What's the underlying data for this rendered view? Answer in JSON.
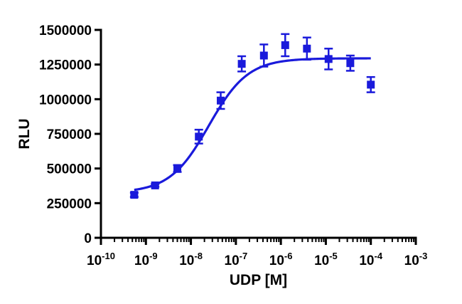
{
  "chart_data": {
    "type": "scatter",
    "xlabel": "UDP [M]",
    "ylabel": "RLU",
    "x_scale": "log",
    "xlim": [
      1e-10,
      0.001
    ],
    "ylim": [
      0,
      1500000
    ],
    "x_ticks": [
      {
        "value": 1e-10,
        "base": "10",
        "exp": "-10"
      },
      {
        "value": 1e-09,
        "base": "10",
        "exp": "-9"
      },
      {
        "value": 1e-08,
        "base": "10",
        "exp": "-8"
      },
      {
        "value": 1e-07,
        "base": "10",
        "exp": "-7"
      },
      {
        "value": 1e-06,
        "base": "10",
        "exp": "-6"
      },
      {
        "value": 1e-05,
        "base": "10",
        "exp": "-5"
      },
      {
        "value": 0.0001,
        "base": "10",
        "exp": "-4"
      },
      {
        "value": 0.001,
        "base": "10",
        "exp": "-3"
      }
    ],
    "y_ticks": [
      {
        "value": 0,
        "label": "0"
      },
      {
        "value": 250000,
        "label": "250000"
      },
      {
        "value": 500000,
        "label": "500000"
      },
      {
        "value": 750000,
        "label": "750000"
      },
      {
        "value": 1000000,
        "label": "1000000"
      },
      {
        "value": 1250000,
        "label": "1250000"
      },
      {
        "value": 1500000,
        "label": "1500000"
      }
    ],
    "color": "#1a1adb",
    "grid": false,
    "points": [
      {
        "x": 5.5e-10,
        "y": 310000,
        "err": 15000
      },
      {
        "x": 1.6e-09,
        "y": 378000,
        "err": 10000
      },
      {
        "x": 5e-09,
        "y": 500000,
        "err": 25000
      },
      {
        "x": 1.5e-08,
        "y": 730000,
        "err": 50000
      },
      {
        "x": 4.6e-08,
        "y": 990000,
        "err": 60000
      },
      {
        "x": 1.35e-07,
        "y": 1255000,
        "err": 55000
      },
      {
        "x": 4.2e-07,
        "y": 1315000,
        "err": 80000
      },
      {
        "x": 1.25e-06,
        "y": 1390000,
        "err": 80000
      },
      {
        "x": 3.8e-06,
        "y": 1365000,
        "err": 80000
      },
      {
        "x": 1.15e-05,
        "y": 1290000,
        "err": 75000
      },
      {
        "x": 3.5e-05,
        "y": 1260000,
        "err": 55000
      },
      {
        "x": 0.0001,
        "y": 1105000,
        "err": 55000
      }
    ],
    "fit": {
      "bottom": 325000,
      "top": 1295000,
      "logEC50": -7.6,
      "hillslope": 1.0,
      "x_range": [
        5.5e-10,
        0.0001
      ]
    }
  }
}
